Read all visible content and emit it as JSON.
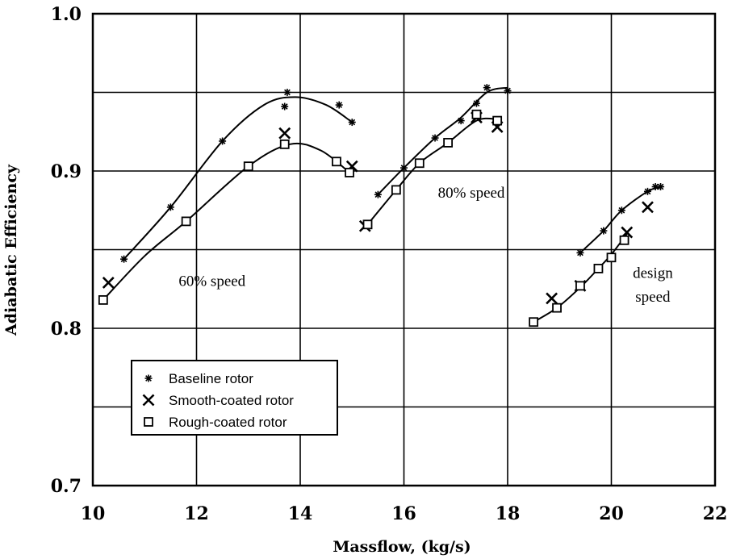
{
  "chart_data": {
    "type": "scatter",
    "title": "",
    "xlabel": "Massflow, (kg/s)",
    "ylabel": "Adiabatic Efficiency",
    "xlim": [
      10,
      22
    ],
    "ylim": [
      0.7,
      1.0
    ],
    "x_ticks": [
      10,
      12,
      14,
      16,
      18,
      20,
      22
    ],
    "y_ticks": [
      0.7,
      0.8,
      0.9,
      1.0
    ],
    "x_tick_labels": [
      "10",
      "12",
      "14",
      "16",
      "18",
      "20",
      "22"
    ],
    "y_tick_labels": [
      "0.7",
      "0.8",
      "0.9",
      "1.0"
    ],
    "grid": true,
    "grid_x": [
      10,
      12,
      14,
      16,
      18,
      20,
      22
    ],
    "grid_y": [
      0.75,
      0.8,
      0.85,
      0.9,
      0.95
    ],
    "legend_position": "bottom-left",
    "annotations": [
      {
        "text": "60% speed",
        "x": 12.3,
        "y": 0.827
      },
      {
        "text": "80% speed",
        "x": 17.3,
        "y": 0.883
      },
      {
        "text": "design",
        "x": 20.8,
        "y": 0.832
      },
      {
        "text": "speed",
        "x": 20.8,
        "y": 0.817
      }
    ],
    "series": [
      {
        "name": "Baseline rotor",
        "marker": "asterisk",
        "points": [
          [
            10.6,
            0.844
          ],
          [
            11.5,
            0.877
          ],
          [
            12.5,
            0.919
          ],
          [
            13.7,
            0.941
          ],
          [
            13.75,
            0.95
          ],
          [
            14.75,
            0.942
          ],
          [
            15.0,
            0.931
          ],
          [
            15.5,
            0.885
          ],
          [
            16.0,
            0.902
          ],
          [
            16.6,
            0.921
          ],
          [
            17.1,
            0.932
          ],
          [
            17.4,
            0.943
          ],
          [
            17.6,
            0.953
          ],
          [
            18.0,
            0.951
          ],
          [
            19.4,
            0.848
          ],
          [
            19.85,
            0.862
          ],
          [
            20.2,
            0.875
          ],
          [
            20.7,
            0.887
          ],
          [
            20.85,
            0.89
          ],
          [
            20.95,
            0.89
          ]
        ],
        "curves": [
          [
            [
              10.6,
              0.844
            ],
            [
              11.5,
              0.877
            ],
            [
              12.5,
              0.919
            ],
            [
              13.3,
              0.942
            ],
            [
              13.9,
              0.947
            ],
            [
              14.5,
              0.942
            ],
            [
              15.0,
              0.931
            ]
          ],
          [
            [
              15.5,
              0.885
            ],
            [
              16.0,
              0.902
            ],
            [
              16.6,
              0.921
            ],
            [
              17.1,
              0.934
            ],
            [
              17.6,
              0.95
            ],
            [
              18.0,
              0.953
            ]
          ],
          [
            [
              19.4,
              0.848
            ],
            [
              19.85,
              0.862
            ],
            [
              20.2,
              0.875
            ],
            [
              20.7,
              0.887
            ],
            [
              20.95,
              0.89
            ]
          ]
        ]
      },
      {
        "name": "Smooth-coated rotor",
        "marker": "x",
        "points": [
          [
            10.3,
            0.829
          ],
          [
            13.7,
            0.924
          ],
          [
            15.0,
            0.903
          ],
          [
            15.25,
            0.865
          ],
          [
            17.4,
            0.934
          ],
          [
            17.8,
            0.928
          ],
          [
            18.85,
            0.819
          ],
          [
            19.4,
            0.827
          ],
          [
            20.3,
            0.861
          ],
          [
            20.7,
            0.877
          ]
        ],
        "curves": []
      },
      {
        "name": "Rough-coated rotor",
        "marker": "square",
        "points": [
          [
            10.2,
            0.818
          ],
          [
            11.8,
            0.868
          ],
          [
            13.0,
            0.903
          ],
          [
            13.7,
            0.917
          ],
          [
            14.7,
            0.906
          ],
          [
            14.95,
            0.899
          ],
          [
            15.3,
            0.866
          ],
          [
            15.85,
            0.888
          ],
          [
            16.3,
            0.905
          ],
          [
            16.85,
            0.918
          ],
          [
            17.4,
            0.936
          ],
          [
            17.8,
            0.932
          ],
          [
            18.5,
            0.804
          ],
          [
            18.95,
            0.813
          ],
          [
            19.4,
            0.827
          ],
          [
            19.75,
            0.838
          ],
          [
            20.0,
            0.845
          ],
          [
            20.25,
            0.856
          ]
        ],
        "curves": [
          [
            [
              10.2,
              0.818
            ],
            [
              11.0,
              0.846
            ],
            [
              11.8,
              0.868
            ],
            [
              13.0,
              0.903
            ],
            [
              13.8,
              0.917
            ],
            [
              14.4,
              0.913
            ],
            [
              14.95,
              0.899
            ]
          ],
          [
            [
              15.3,
              0.866
            ],
            [
              15.85,
              0.888
            ],
            [
              16.3,
              0.905
            ],
            [
              16.85,
              0.918
            ],
            [
              17.4,
              0.932
            ],
            [
              17.8,
              0.933
            ]
          ],
          [
            [
              18.5,
              0.804
            ],
            [
              18.95,
              0.813
            ],
            [
              19.4,
              0.826
            ],
            [
              19.75,
              0.838
            ],
            [
              20.0,
              0.847
            ],
            [
              20.3,
              0.86
            ]
          ]
        ]
      }
    ]
  }
}
